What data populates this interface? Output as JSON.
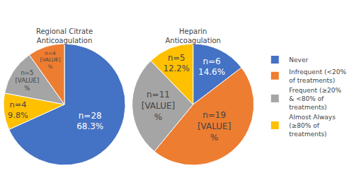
{
  "chart_data": [
    {
      "type": "pie",
      "title": "Regional Citrate\nAnticoagulation",
      "categories": [
        "Never",
        "Almost Always\n(≥80% of\ntreatments)",
        "Frequent (≥20%\n& <80% of\ntreatments)",
        "Infrequent (<20%\nof treatments)"
      ],
      "values": [
        68.3,
        9.8,
        12.2,
        9.8
      ],
      "value_labels": [
        "n=28\n68.3%",
        "n=4\n9.8%",
        "n=5\n[VALUE]\n%",
        "n=4\n[VALUE]\n%"
      ],
      "colors": [
        "#4472C4",
        "#FFC000",
        "#A5A5A5",
        "#ED7D31"
      ],
      "data_labels": true,
      "legend": "right"
    },
    {
      "type": "pie",
      "title": "Heparin\nAnticoagulation",
      "categories": [
        "Never",
        "Infrequent (<20%\nof treatments)",
        "Frequent (≥20%\n& <80% of\ntreatments)",
        "Almost Always\n(≥80% of\ntreatments)"
      ],
      "values": [
        14.6,
        46.3,
        26.8,
        12.2
      ],
      "value_labels": [
        "n=6\n14.6%",
        "n=19\n[VALUE]\n%",
        "n=11\n[VALUE]\n%",
        "n=5\n12.2%"
      ],
      "colors": [
        "#4472C4",
        "#ED7D31",
        "#A5A5A5",
        "#FFC000"
      ],
      "data_labels": true,
      "legend": "right"
    }
  ]
}
